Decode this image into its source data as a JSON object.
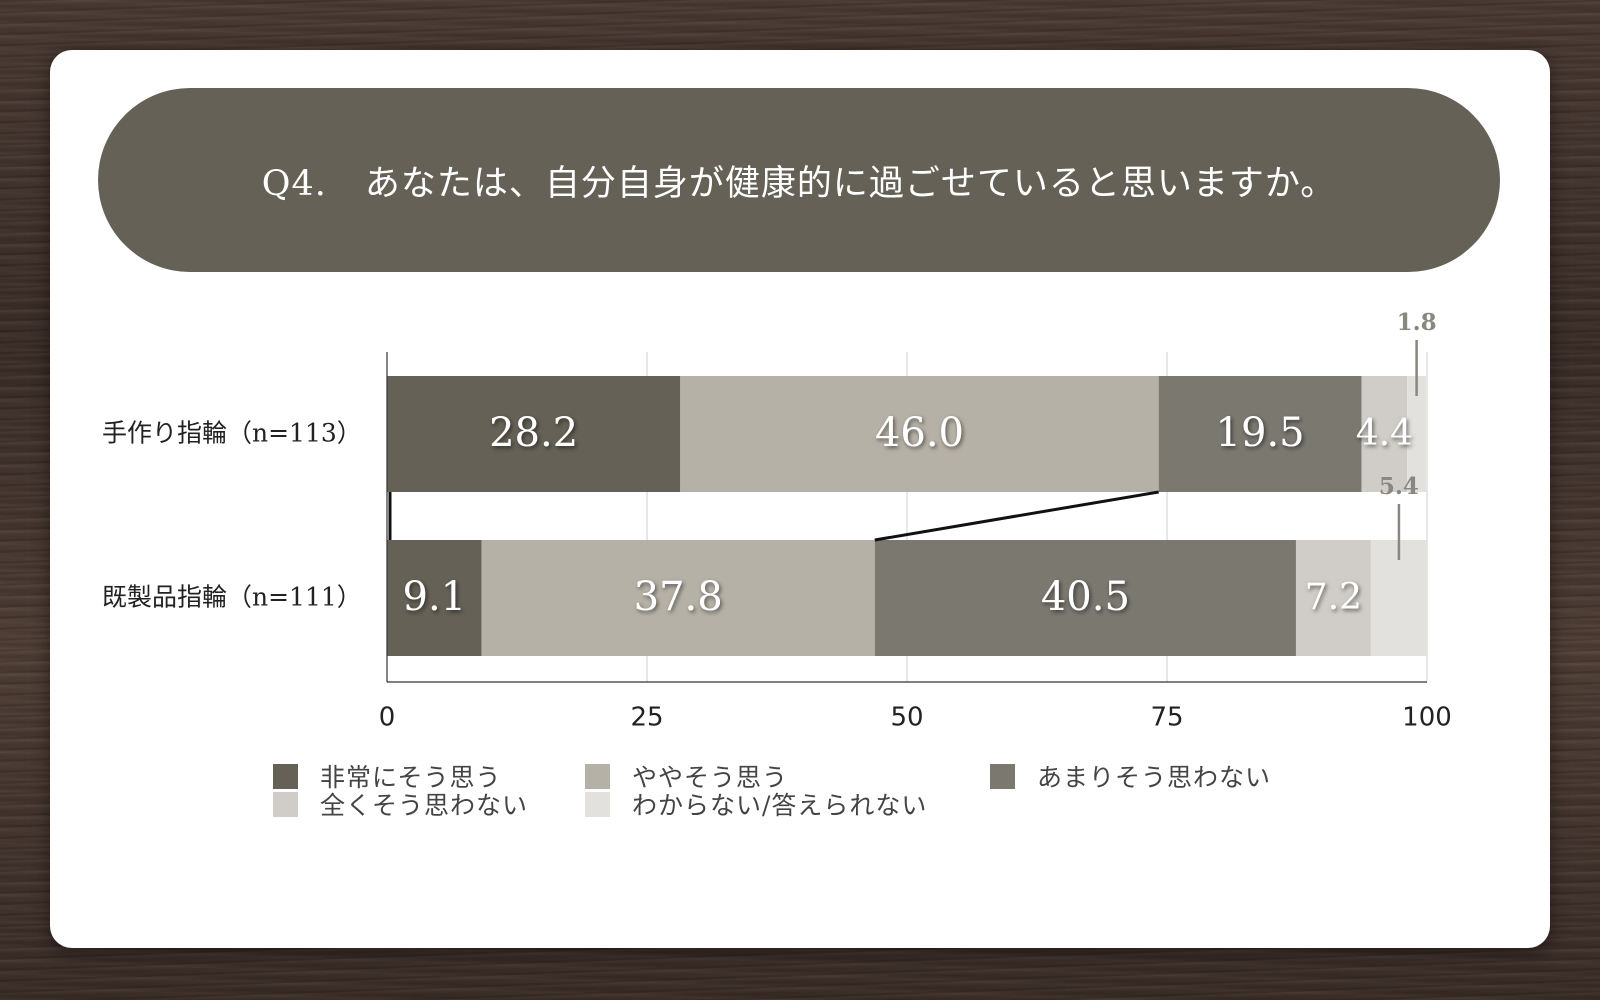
{
  "question": {
    "number": "Q4.",
    "text": "あなたは、自分自身が健康的に過ごせていると思いますか。"
  },
  "chart_data": {
    "type": "bar",
    "orientation": "horizontal",
    "stacked": true,
    "categories": [
      "手作り指輪（n=113）",
      "既製品指輪（n=111）"
    ],
    "series": [
      {
        "name": "非常にそう思う",
        "values": [
          28.2,
          9.1
        ],
        "color": "#656156",
        "label_color": "#ffffff"
      },
      {
        "name": "ややそう思う",
        "values": [
          46.0,
          37.8
        ],
        "color": "#b6b1a6",
        "label_color": "#ffffff"
      },
      {
        "name": "あまりそう思わない",
        "values": [
          19.5,
          40.5
        ],
        "color": "#7b7870",
        "label_color": "#ffffff"
      },
      {
        "name": "全くそう思わない",
        "values": [
          4.4,
          7.2
        ],
        "color": "#d0ccc7",
        "label_color": "#ffffff"
      },
      {
        "name": "わからない/答えられない",
        "values": [
          1.8,
          5.4
        ],
        "color": "#e3e1de",
        "label_color": "#8a8780"
      }
    ],
    "value_labels": [
      [
        "28.2",
        "46.0",
        "19.5",
        "4.4",
        "1.8"
      ],
      [
        "9.1",
        "37.8",
        "40.5",
        "7.2",
        "5.4"
      ]
    ],
    "xlim": [
      0,
      100
    ],
    "xticks": [
      0,
      25,
      50,
      75,
      100
    ],
    "xtick_labels": [
      "0",
      "25",
      "50",
      "75",
      "100"
    ],
    "grid": true,
    "legend_position": "bottom"
  }
}
